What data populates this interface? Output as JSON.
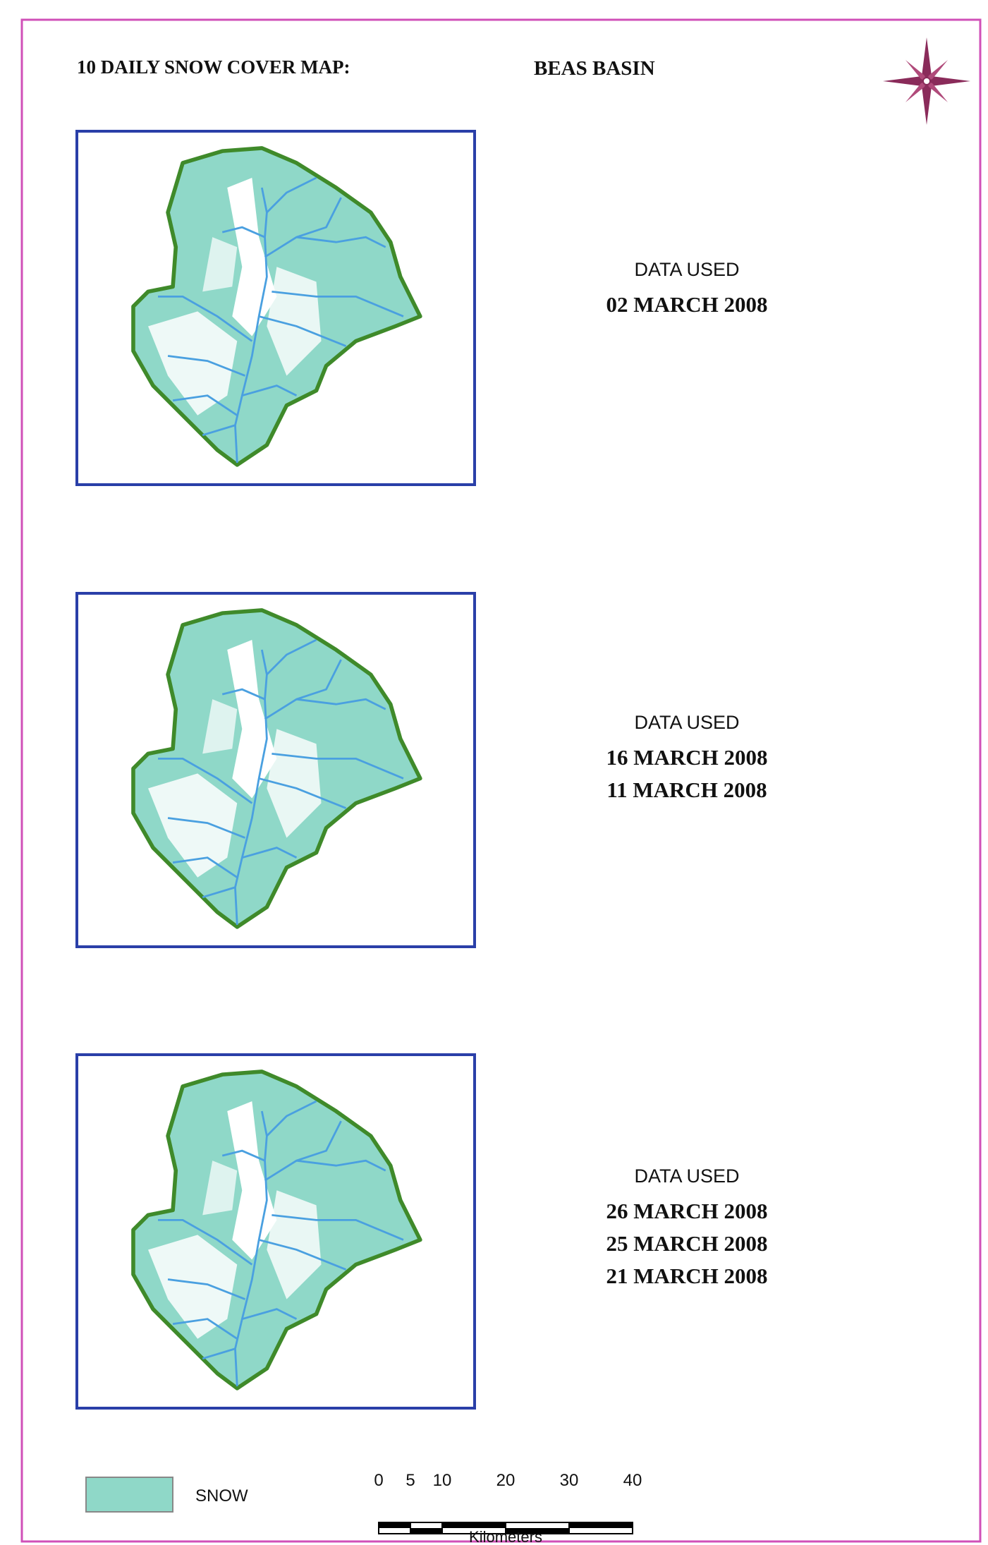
{
  "header": {
    "title": "10 DAILY SNOW COVER MAP:",
    "basin": "BEAS BASIN"
  },
  "panels": [
    {
      "label": "DATA USED",
      "dates": [
        "02 MARCH 2008"
      ]
    },
    {
      "label": "DATA USED",
      "dates": [
        "16 MARCH 2008",
        "11 MARCH 2008"
      ]
    },
    {
      "label": "DATA USED",
      "dates": [
        "26 MARCH 2008",
        "25 MARCH 2008",
        "21 MARCH 2008"
      ]
    }
  ],
  "legend": {
    "label": "SNOW"
  },
  "scale_bar": {
    "ticks": [
      0,
      5,
      10,
      20,
      30,
      40
    ],
    "unit": "Kilometers"
  }
}
